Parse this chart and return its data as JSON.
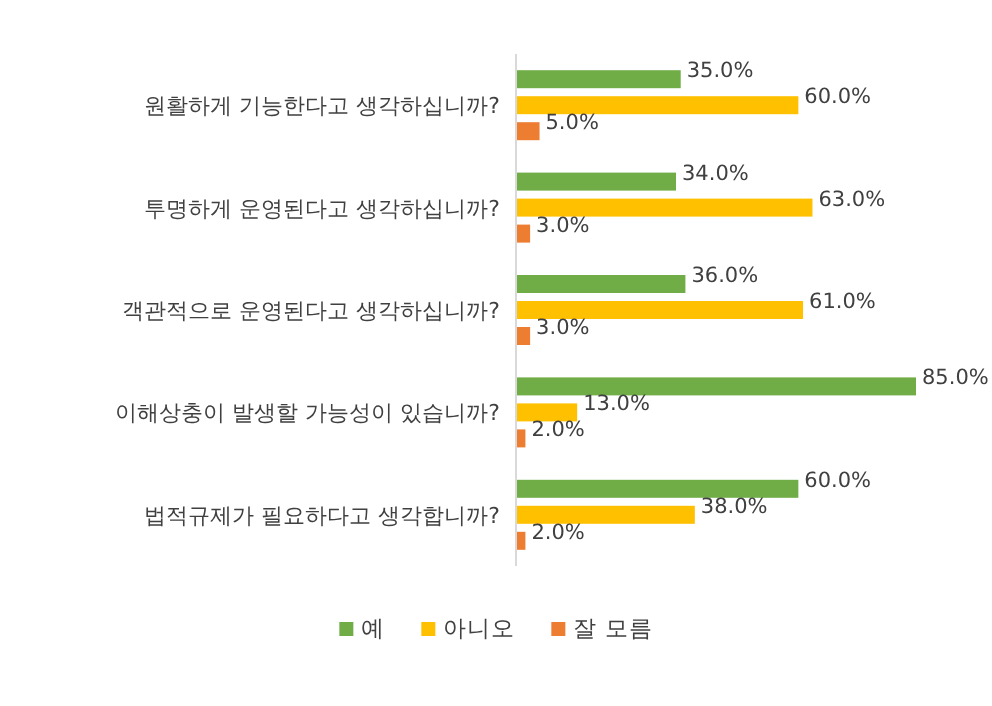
{
  "chart_data": {
    "type": "bar",
    "orientation": "horizontal",
    "categories": [
      "원활하게 기능한다고 생각하십니까?",
      "투명하게 운영된다고 생각하십니까?",
      "객관적으로 운영된다고 생각하십니까?",
      "이해상충이 발생할 가능성이 있습니까?",
      "법적규제가 필요하다고 생각합니까?"
    ],
    "series": [
      {
        "name": "예",
        "color": "#70ad47",
        "values": [
          35,
          34,
          36,
          85,
          60
        ],
        "value_labels": [
          "35.0%",
          "34.0%",
          "36.0%",
          "85.0%",
          "60.0%"
        ]
      },
      {
        "name": "아니오",
        "color": "#ffc000",
        "values": [
          60,
          63,
          61,
          13,
          38
        ],
        "value_labels": [
          "60.0%",
          "63.0%",
          "61.0%",
          "13.0%",
          "38.0%"
        ]
      },
      {
        "name": "잘 모름",
        "color": "#ed7d31",
        "values": [
          5,
          3,
          3,
          2,
          2
        ],
        "value_labels": [
          "5.0%",
          "3.0%",
          "3.0%",
          "2.0%",
          "2.0%"
        ]
      }
    ],
    "legend": "bottom"
  }
}
